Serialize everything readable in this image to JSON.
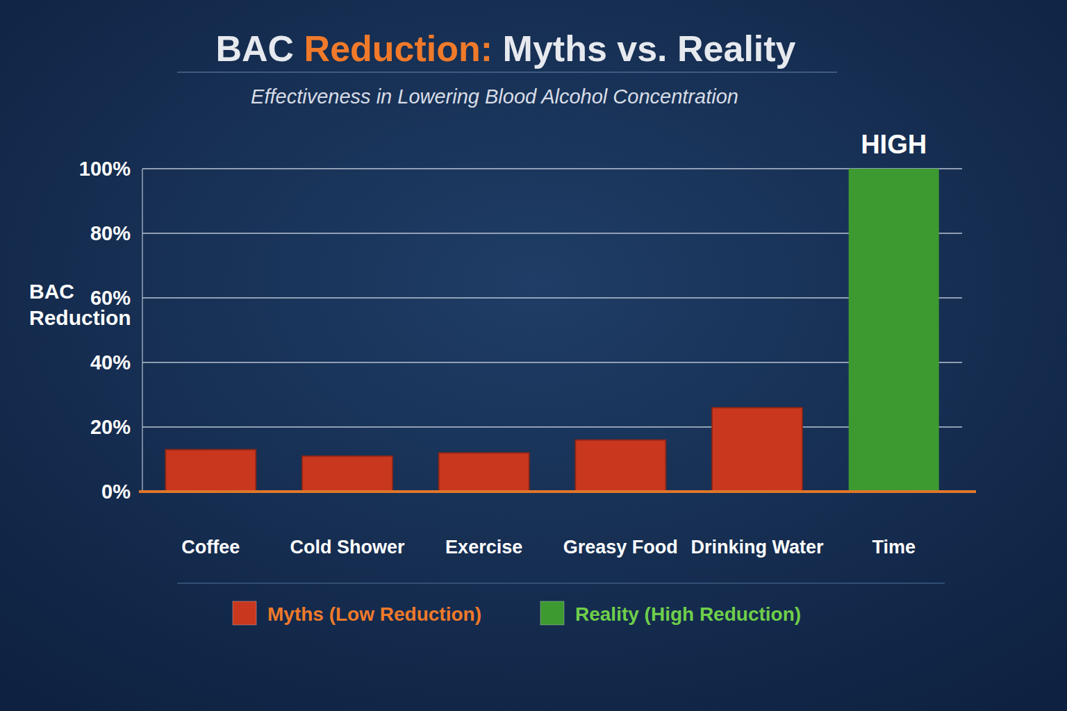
{
  "chart_data": {
    "type": "bar",
    "title": "BAC Reduction: Myths vs. Reality",
    "subtitle": "Effectiveness in Lowering Blood Alcohol Concentration",
    "y_label": "BAC Reduction",
    "categories": [
      "Coffee",
      "Cold Shower",
      "Exercise",
      "Greasy Food",
      "Drinking Water",
      "Time"
    ],
    "series": [
      {
        "name": "Myths (Low Reduction)",
        "color": "#c8371e",
        "values": [
          13,
          11,
          12,
          16,
          26,
          null
        ]
      },
      {
        "name": "Reality (High Reduction)",
        "color": "#3d9a30",
        "values": [
          null,
          null,
          null,
          null,
          null,
          100
        ]
      }
    ],
    "stacked": true,
    "ylim": [
      0,
      100
    ],
    "yticks": [
      {
        "value": 0,
        "label": "0%"
      },
      {
        "value": 20,
        "label": "20%"
      },
      {
        "value": 40,
        "label": "40%"
      },
      {
        "value": 60,
        "label": "60%"
      },
      {
        "value": 80,
        "label": "80%"
      },
      {
        "value": 100,
        "label": "100%"
      }
    ],
    "grid": true,
    "legend": "bottom",
    "annotations": [
      {
        "text": "HIGH",
        "x": "Time"
      }
    ]
  }
}
